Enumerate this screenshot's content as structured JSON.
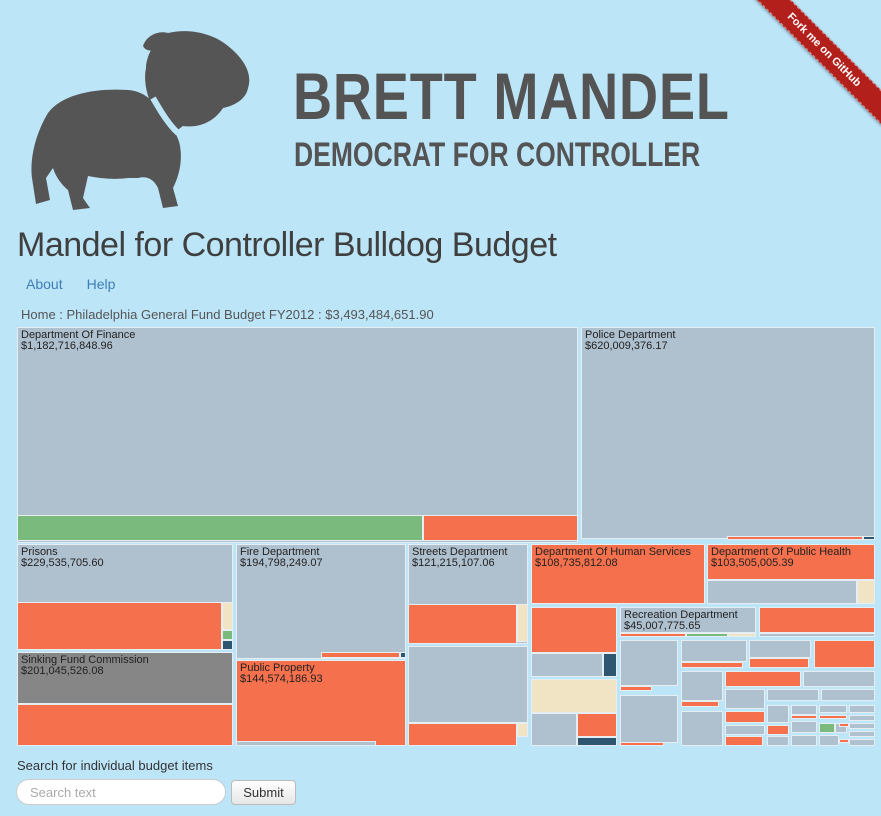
{
  "ribbon": {
    "label": "Fork me on GitHub"
  },
  "header": {
    "title": "BRETT MANDEL",
    "subtitle": "DEMOCRAT FOR CONTROLLER"
  },
  "page": {
    "title": "Mandel for Controller Bulldog Budget"
  },
  "nav": {
    "about": "About",
    "help": "Help"
  },
  "breadcrumb": {
    "text": "Home : Philadelphia General Fund Budget FY2012 : $3,493,484,651.90"
  },
  "treemap": {
    "colors": {
      "default": "#afc0cf",
      "red": "#f5704c",
      "green": "#7aba7c",
      "tan": "#f1e4c4",
      "dark": "#2f5670",
      "gray": "#868686"
    },
    "departments": [
      {
        "name": "Department Of Finance",
        "amount": "$1,182,716,848.96"
      },
      {
        "name": "Police Department",
        "amount": "$620,009,376.17"
      },
      {
        "name": "Prisons",
        "amount": "$229,535,705.60"
      },
      {
        "name": "Fire Department",
        "amount": "$194,798,249.07"
      },
      {
        "name": "Streets Department",
        "amount": "$121,215,107.06"
      },
      {
        "name": "Department Of Human Services",
        "amount": "$108,735,812.08"
      },
      {
        "name": "Department Of Public Health",
        "amount": "$103,505,005.39"
      },
      {
        "name": "Sinking Fund Commission",
        "amount": "$201,045,526.08"
      },
      {
        "name": "Public Property",
        "amount": "$144,574,186.93"
      },
      {
        "name": "Recreation Department",
        "amount": "$45,007,775.65"
      }
    ]
  },
  "search": {
    "label": "Search for individual budget items",
    "placeholder": "Search text",
    "submit_label": "Submit"
  }
}
